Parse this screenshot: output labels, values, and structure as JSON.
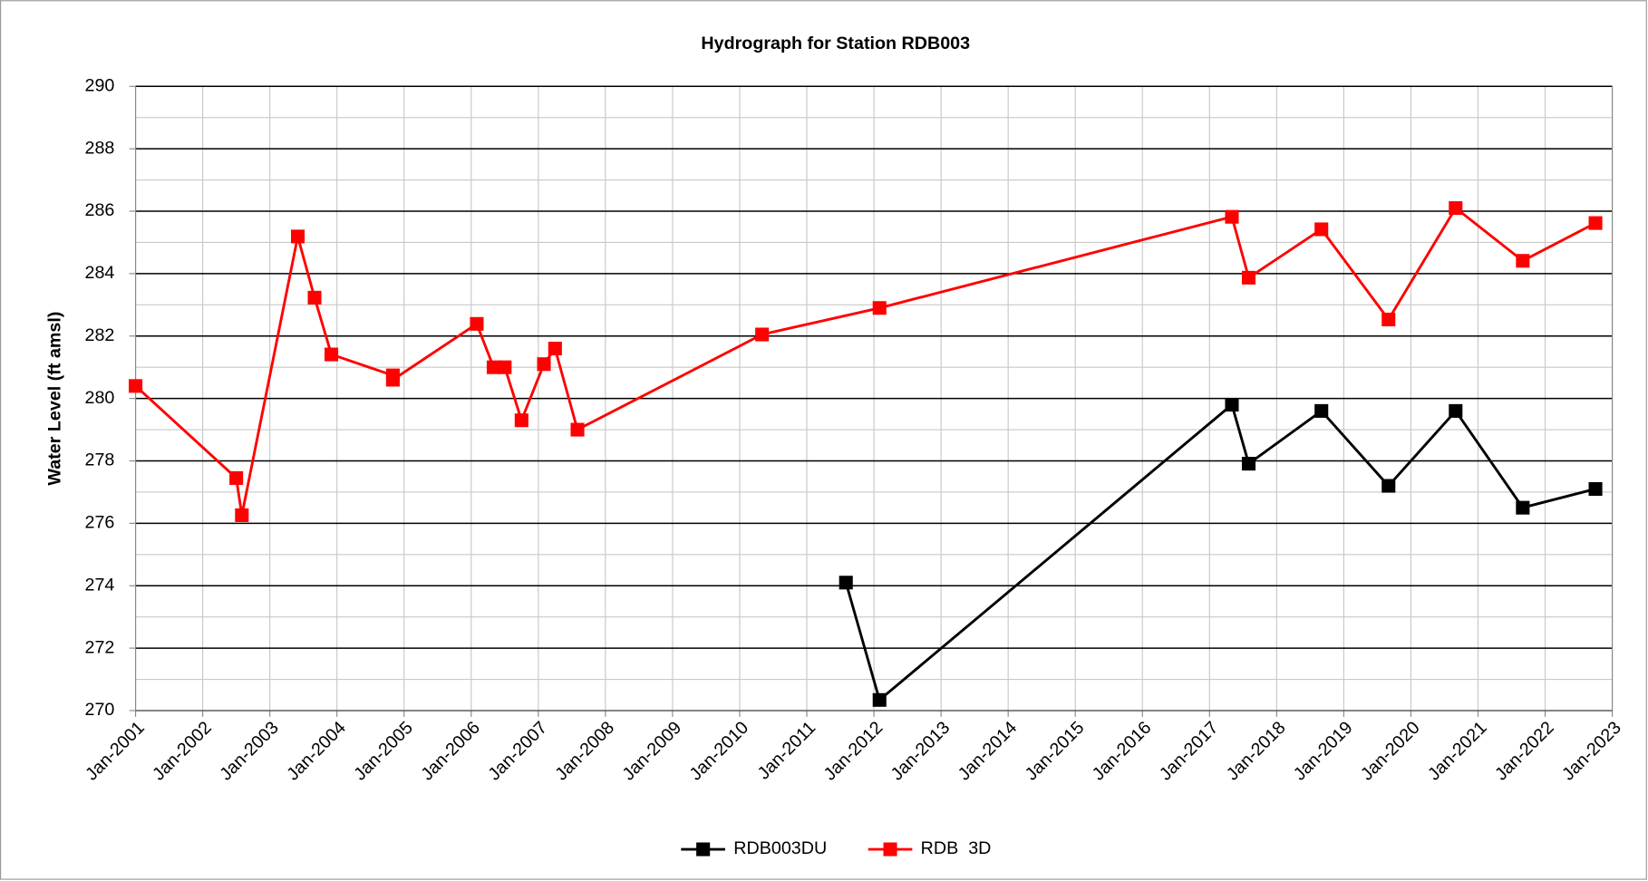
{
  "chart_data": {
    "type": "line",
    "title": "Hydrograph for Station RDB003",
    "y_label": "Water Level (ft amsl)",
    "xlim": [
      "2001-01",
      "2023-01"
    ],
    "xticks": [
      {
        "value": "2001-01",
        "label": "Jan-2001"
      },
      {
        "value": "2002-01",
        "label": "Jan-2002"
      },
      {
        "value": "2003-01",
        "label": "Jan-2003"
      },
      {
        "value": "2004-01",
        "label": "Jan-2004"
      },
      {
        "value": "2005-01",
        "label": "Jan-2005"
      },
      {
        "value": "2006-01",
        "label": "Jan-2006"
      },
      {
        "value": "2007-01",
        "label": "Jan-2007"
      },
      {
        "value": "2008-01",
        "label": "Jan-2008"
      },
      {
        "value": "2009-01",
        "label": "Jan-2009"
      },
      {
        "value": "2010-01",
        "label": "Jan-2010"
      },
      {
        "value": "2011-01",
        "label": "Jan-2011"
      },
      {
        "value": "2012-01",
        "label": "Jan-2012"
      },
      {
        "value": "2013-01",
        "label": "Jan-2013"
      },
      {
        "value": "2014-01",
        "label": "Jan-2014"
      },
      {
        "value": "2015-01",
        "label": "Jan-2015"
      },
      {
        "value": "2016-01",
        "label": "Jan-2016"
      },
      {
        "value": "2017-01",
        "label": "Jan-2017"
      },
      {
        "value": "2018-01",
        "label": "Jan-2018"
      },
      {
        "value": "2019-01",
        "label": "Jan-2019"
      },
      {
        "value": "2020-01",
        "label": "Jan-2020"
      },
      {
        "value": "2021-01",
        "label": "Jan-2021"
      },
      {
        "value": "2022-01",
        "label": "Jan-2022"
      },
      {
        "value": "2023-01",
        "label": "Jan-2023"
      }
    ],
    "ylim": [
      270,
      290
    ],
    "yticks": [
      270,
      272,
      274,
      276,
      278,
      280,
      282,
      284,
      286,
      288,
      290
    ],
    "grid": true,
    "legend": "bottom",
    "series": [
      {
        "name": "RDB003DU",
        "color": "#000000",
        "x": [
          "2011-08",
          "2012-02",
          "2017-05",
          "2017-08",
          "2018-09",
          "2019-09",
          "2020-09",
          "2021-09",
          "2022-10"
        ],
        "values": [
          274.1,
          270.34,
          279.8,
          277.91,
          279.6,
          277.2,
          279.6,
          276.5,
          277.1
        ]
      },
      {
        "name": "RDB  3D",
        "color": "#ff0000",
        "x": [
          "2001-01",
          "2002-07",
          "2002-08",
          "2003-06",
          "2003-09",
          "2003-12",
          "2004-11",
          "2004-11",
          "2006-02",
          "2006-05",
          "2006-07",
          "2006-10",
          "2007-02",
          "2007-04",
          "2007-08",
          "2010-05",
          "2012-02",
          "2017-05",
          "2017-08",
          "2018-09",
          "2019-09",
          "2020-09",
          "2021-09",
          "2022-10"
        ],
        "values": [
          280.4,
          277.45,
          276.26,
          285.19,
          283.23,
          281.41,
          280.74,
          280.6,
          282.39,
          281.0,
          281.0,
          279.3,
          281.1,
          281.6,
          279.0,
          282.05,
          282.9,
          285.82,
          283.87,
          285.42,
          282.53,
          286.1,
          284.41,
          285.62
        ]
      }
    ]
  }
}
